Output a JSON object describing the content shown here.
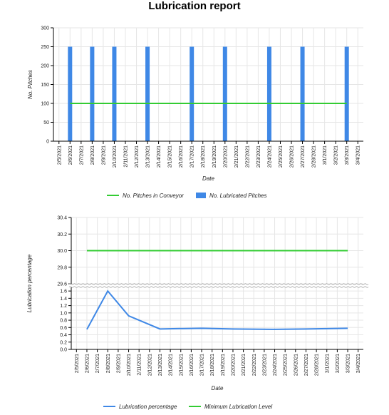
{
  "report": {
    "title": "Lubrication report"
  },
  "colors": {
    "bar": "#3f88e6",
    "green": "#33cc33",
    "blue_line": "#3f88e6",
    "grid": "#e6e6e6",
    "axis": "#000000"
  },
  "chart_data": [
    {
      "type": "bar",
      "title": "",
      "xlabel": "Date",
      "ylabel": "No. Pitches",
      "ylim": [
        0,
        300
      ],
      "yticks": [
        0,
        50,
        100,
        150,
        200,
        250,
        300
      ],
      "grid": true,
      "legend_position": "bottom",
      "categories": [
        "2/5/2021",
        "2/6/2021",
        "2/7/2021",
        "2/8/2021",
        "2/9/2021",
        "2/10/2021",
        "2/11/2021",
        "2/12/2021",
        "2/13/2021",
        "2/14/2021",
        "2/15/2021",
        "2/16/2021",
        "2/17/2021",
        "2/18/2021",
        "2/19/2021",
        "2/20/2021",
        "2/21/2021",
        "2/22/2021",
        "2/23/2021",
        "2/24/2021",
        "2/25/2021",
        "2/26/2021",
        "2/27/2021",
        "2/28/2021",
        "3/1/2021",
        "3/2/2021",
        "3/3/2021",
        "3/4/2021"
      ],
      "series": [
        {
          "name": "No. Pitches in Conveyor",
          "kind": "line",
          "color": "#33cc33",
          "values": [
            null,
            100,
            100,
            100,
            100,
            100,
            100,
            100,
            100,
            100,
            100,
            100,
            100,
            100,
            100,
            100,
            100,
            100,
            100,
            100,
            100,
            100,
            100,
            100,
            100,
            100,
            100,
            null
          ]
        },
        {
          "name": "No. Lubricated Pitches",
          "kind": "bar",
          "color": "#3f88e6",
          "values": [
            null,
            250,
            null,
            250,
            null,
            250,
            null,
            null,
            250,
            null,
            null,
            null,
            250,
            null,
            null,
            250,
            null,
            null,
            null,
            250,
            null,
            null,
            250,
            null,
            null,
            null,
            250,
            null
          ]
        }
      ]
    },
    {
      "type": "line",
      "title": "",
      "xlabel": "Date",
      "ylabel": "Lubrication percentage",
      "y_break": true,
      "upper_ylim": [
        29.6,
        30.4
      ],
      "upper_yticks": [
        "29.6",
        "29.8",
        "30.0",
        "30.2",
        "30.4"
      ],
      "lower_ylim": [
        0,
        1.7
      ],
      "lower_yticks": [
        "0.0",
        "0.2",
        "0.4",
        "0.6",
        "0.8",
        "1.0",
        "1.2",
        "1.4",
        "1.6"
      ],
      "grid": true,
      "legend_position": "bottom",
      "categories": [
        "2/5/2021",
        "2/6/2021",
        "2/7/2021",
        "2/8/2021",
        "2/9/2021",
        "2/10/2021",
        "2/11/2021",
        "2/12/2021",
        "2/13/2021",
        "2/14/2021",
        "2/15/2021",
        "2/16/2021",
        "2/17/2021",
        "2/18/2021",
        "2/19/2021",
        "2/20/2021",
        "2/21/2021",
        "2/22/2021",
        "2/23/2021",
        "2/24/2021",
        "2/25/2021",
        "2/26/2021",
        "2/27/2021",
        "2/28/2021",
        "3/1/2021",
        "3/2/2021",
        "3/3/2021",
        "3/4/2021"
      ],
      "series": [
        {
          "name": "Lubrication percentage",
          "color": "#3f88e6",
          "values": [
            null,
            0.55,
            null,
            1.6,
            null,
            0.92,
            null,
            null,
            0.56,
            null,
            null,
            null,
            0.58,
            null,
            null,
            0.56,
            null,
            null,
            null,
            0.55,
            null,
            null,
            0.56,
            null,
            null,
            null,
            0.58,
            null
          ]
        },
        {
          "name": "Minimum Lubrication Level",
          "color": "#33cc33",
          "values": [
            null,
            30,
            30,
            30,
            30,
            30,
            30,
            30,
            30,
            30,
            30,
            30,
            30,
            30,
            30,
            30,
            30,
            30,
            30,
            30,
            30,
            30,
            30,
            30,
            30,
            30,
            30,
            null
          ]
        }
      ]
    }
  ]
}
